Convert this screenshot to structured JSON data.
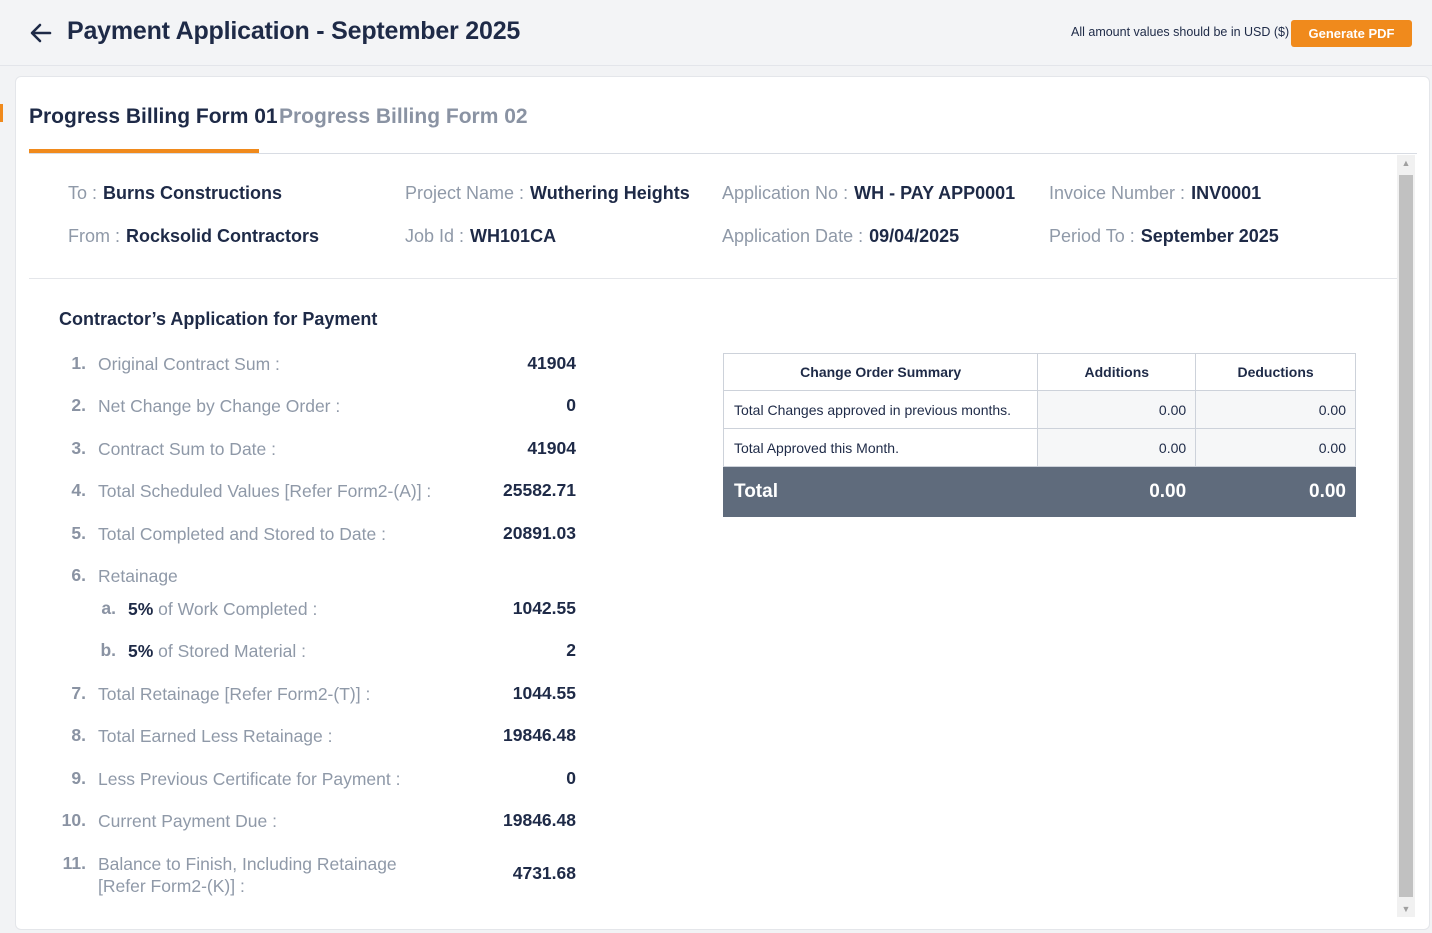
{
  "header": {
    "title": "Payment Application - September 2025",
    "usd_note": "All amount values should be in USD ($)",
    "generate_pdf": "Generate PDF"
  },
  "tabs": [
    {
      "label": "Progress Billing Form 01",
      "active": true
    },
    {
      "label": "Progress Billing Form 02",
      "active": false
    }
  ],
  "info": {
    "to": {
      "label": "To :",
      "value": "Burns Constructions"
    },
    "from": {
      "label": "From :",
      "value": "Rocksolid Contractors"
    },
    "project_name": {
      "label": "Project Name :",
      "value": "Wuthering Heights"
    },
    "job_id": {
      "label": "Job Id :",
      "value": "WH101CA"
    },
    "application_no": {
      "label": "Application No :",
      "value": "WH - PAY APP0001"
    },
    "application_date": {
      "label": "Application Date :",
      "value": "09/04/2025"
    },
    "invoice_number": {
      "label": "Invoice Number :",
      "value": "INV0001"
    },
    "period_to": {
      "label": "Period To :",
      "value": "September 2025"
    }
  },
  "application": {
    "title": "Contractor’s Application for Payment",
    "items": [
      {
        "num": "1.",
        "label": "Original Contract Sum :",
        "value": "41904"
      },
      {
        "num": "2.",
        "label": "Net Change by Change Order :",
        "value": "0"
      },
      {
        "num": "3.",
        "label": "Contract Sum to Date :",
        "value": "41904"
      },
      {
        "num": "4.",
        "label": "Total Scheduled Values [Refer Form2-(A)] :",
        "value": "25582.71"
      },
      {
        "num": "5.",
        "label": "Total Completed and Stored to Date :",
        "value": "20891.03"
      },
      {
        "num": "6.",
        "label": "Retainage",
        "value": ""
      },
      {
        "num": "a.",
        "pct": "5%",
        "label": "of Work Completed :",
        "value": "1042.55"
      },
      {
        "num": "b.",
        "pct": "5%",
        "label": "of Stored Material :",
        "value": "2"
      },
      {
        "num": "7.",
        "label": "Total Retainage [Refer Form2-(T)] :",
        "value": "1044.55"
      },
      {
        "num": "8.",
        "label": "Total Earned Less Retainage :",
        "value": "19846.48"
      },
      {
        "num": "9.",
        "label": "Less Previous Certificate for Payment :",
        "value": "0"
      },
      {
        "num": "10.",
        "label": "Current Payment Due :",
        "value": "19846.48"
      },
      {
        "num": "11.",
        "label": "Balance to Finish, Including Retainage [Refer Form2-(K)] :",
        "value": "4731.68"
      }
    ]
  },
  "change_order_summary": {
    "headers": [
      "Change Order Summary",
      "Additions",
      "Deductions"
    ],
    "rows": [
      {
        "desc": "Total Changes approved in previous months.",
        "additions": "0.00",
        "deductions": "0.00"
      },
      {
        "desc": "Total Approved this Month.",
        "additions": "0.00",
        "deductions": "0.00"
      }
    ],
    "total": {
      "desc": "Total",
      "additions": "0.00",
      "deductions": "0.00"
    }
  },
  "colors": {
    "accent": "#f08a1c",
    "total_row": "#5f6b7c",
    "text": "#1e2a47",
    "muted": "#8f99a8"
  }
}
